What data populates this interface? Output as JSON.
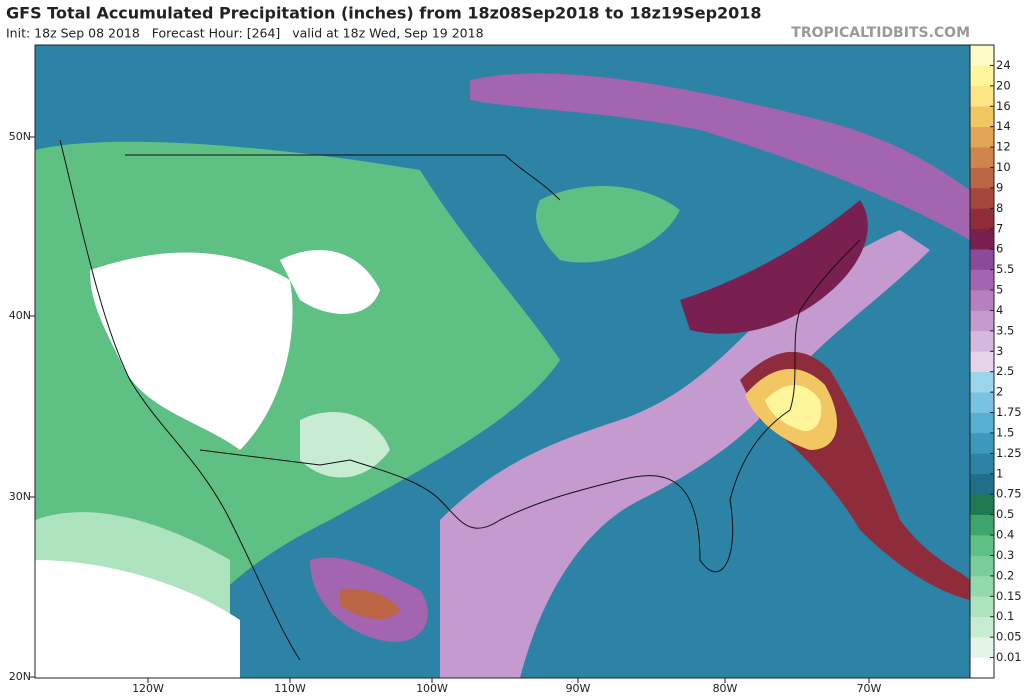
{
  "header": {
    "title": "GFS Total Accumulated Precipitation (inches) from 18z08Sep2018 to 18z19Sep2018",
    "subtitle": "Init: 18z Sep 08 2018   Forecast Hour: [264]   valid at 18z Wed, Sep 19 2018",
    "source": "TROPICALTIDBITS.COM"
  },
  "map": {
    "lat_labels": [
      "50N",
      "40N",
      "30N",
      "20N"
    ],
    "lon_labels": [
      "120W",
      "110W",
      "100W",
      "90W",
      "80W",
      "70W"
    ]
  },
  "colorbar": {
    "levels": [
      0.01,
      0.05,
      0.1,
      0.15,
      0.2,
      0.3,
      0.4,
      0.5,
      0.75,
      1,
      1.25,
      1.5,
      1.75,
      2,
      2.5,
      3,
      3.5,
      4,
      5,
      5.5,
      6,
      7,
      8,
      9,
      10,
      12,
      14,
      16,
      20,
      24
    ],
    "colors": [
      "#ffffff",
      "#e4f5e8",
      "#c8ecd2",
      "#aee3bf",
      "#94d9ac",
      "#78cd98",
      "#5fc084",
      "#3fa56a",
      "#1e7b51",
      "#1f6e8a",
      "#2d83a5",
      "#3c98bd",
      "#57afd2",
      "#78c3e0",
      "#9bd5ec",
      "#e6d3ea",
      "#d6b8de",
      "#c59acf",
      "#b57fc0",
      "#a364b0",
      "#8d4a9c",
      "#7a2050",
      "#8e2c3c",
      "#a5473d",
      "#bb6544",
      "#cf844c",
      "#e2a556",
      "#f1c663",
      "#fbe585",
      "#fff59a",
      "#fffbc8"
    ]
  }
}
